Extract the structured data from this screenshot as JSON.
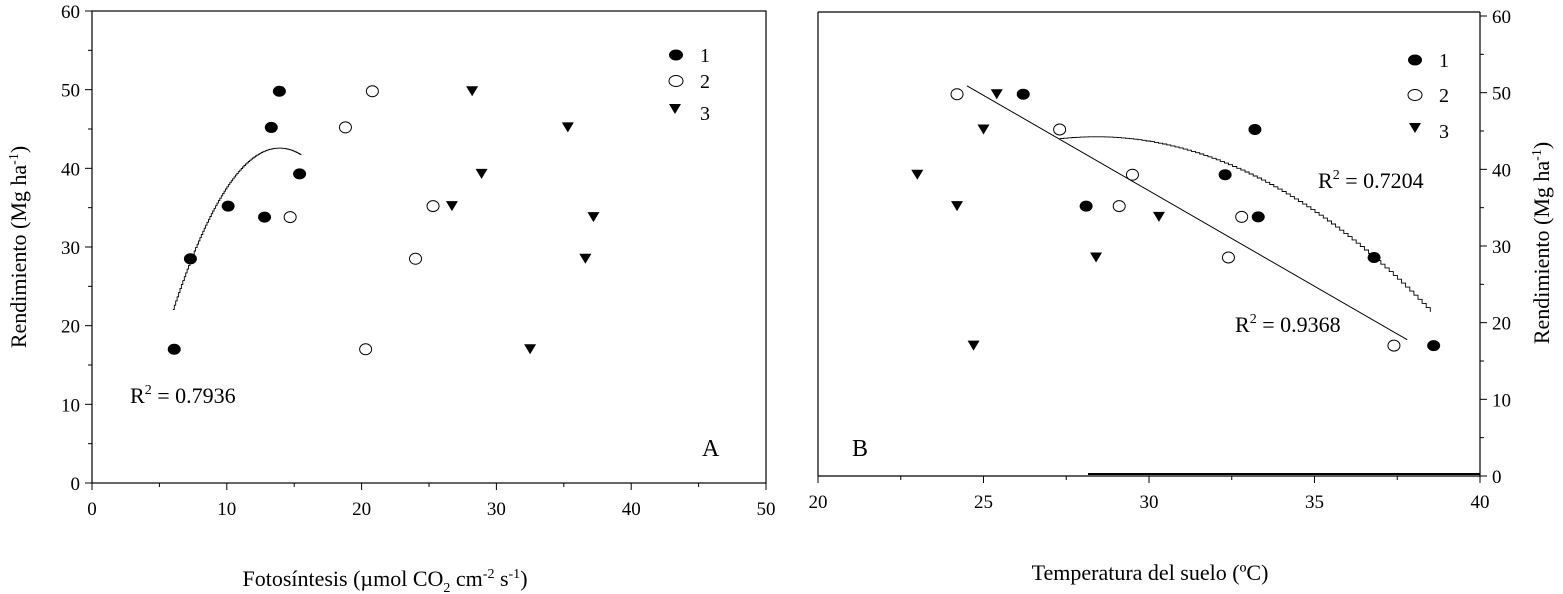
{
  "chart_data": [
    {
      "panel": "A",
      "type": "scatter",
      "xlabel": "Fotosíntesis (µmol CO",
      "xlabel_sub": "2",
      "xlabel_mid": " cm",
      "xlabel_sup1": "-2",
      "xlabel_mid2": " s",
      "xlabel_sup2": "-1",
      "xlabel_end": ")",
      "ylabel": "Rendimiento (Mg ha",
      "ylabel_sup": "-1",
      "ylabel_end": ")",
      "xlim": [
        0,
        50
      ],
      "ylim": [
        0,
        60
      ],
      "xticks": [
        "0",
        "10",
        "20",
        "30",
        "40",
        "50"
      ],
      "yticks": [
        "0",
        "10",
        "20",
        "30",
        "40",
        "50",
        "60"
      ],
      "legend": [
        "1",
        "2",
        "3"
      ],
      "legend_position": "top-right",
      "series": [
        {
          "name": "1",
          "marker": "filled-circle",
          "points": [
            [
              6.1,
              17
            ],
            [
              7.3,
              28.5
            ],
            [
              10.1,
              35.2
            ],
            [
              12.8,
              33.8
            ],
            [
              13.3,
              45.2
            ],
            [
              13.9,
              49.8
            ],
            [
              15.4,
              39.3
            ]
          ]
        },
        {
          "name": "2",
          "marker": "open-circle",
          "points": [
            [
              14.7,
              33.8
            ],
            [
              18.8,
              45.2
            ],
            [
              20.3,
              17
            ],
            [
              20.8,
              49.8
            ],
            [
              24,
              28.5
            ],
            [
              25.3,
              35.2
            ]
          ]
        },
        {
          "name": "3",
          "marker": "filled-triangle-down",
          "points": [
            [
              26.7,
              35.2
            ],
            [
              28.2,
              49.8
            ],
            [
              28.9,
              39.3
            ],
            [
              32.5,
              17
            ],
            [
              35.3,
              45.2
            ],
            [
              36.6,
              28.5
            ],
            [
              37.2,
              33.8
            ]
          ]
        }
      ],
      "fit": {
        "type": "quadratic",
        "x_from": 6,
        "x_to": 15.5,
        "coeffs": {
          "a": -0.3318,
          "b": 9.2,
          "c": -21.2
        }
      },
      "annotations": [
        {
          "text": "R",
          "sup": "2",
          "rest": " = 0.7936",
          "at_x": 2.8,
          "at_y": 10.8
        },
        {
          "text": "A",
          "at_x": 45.3,
          "at_y": 3.5
        }
      ]
    },
    {
      "panel": "B",
      "type": "scatter",
      "xlabel": "Temperatura del suelo (ºC)",
      "ylabel": "Rendimiento (Mg ha",
      "ylabel_sup": "-1",
      "ylabel_end": ")",
      "xlim": [
        20,
        40
      ],
      "ylim": [
        0,
        60
      ],
      "xticks": [
        "20",
        "25",
        "30",
        "35",
        "40"
      ],
      "yticks": [
        "0",
        "10",
        "20",
        "30",
        "40",
        "50",
        "60"
      ],
      "legend": [
        "1",
        "2",
        "3"
      ],
      "legend_position": "top-right",
      "series": [
        {
          "name": "1",
          "marker": "filled-circle",
          "points": [
            [
              26.2,
              49.8
            ],
            [
              28.1,
              35.2
            ],
            [
              32.3,
              39.3
            ],
            [
              33.2,
              45.2
            ],
            [
              33.3,
              33.8
            ],
            [
              36.8,
              28.5
            ],
            [
              38.6,
              17
            ]
          ]
        },
        {
          "name": "2",
          "marker": "open-circle",
          "points": [
            [
              24.2,
              49.8
            ],
            [
              27.3,
              45.2
            ],
            [
              29.1,
              35.2
            ],
            [
              29.5,
              39.3
            ],
            [
              32.4,
              28.5
            ],
            [
              32.8,
              33.8
            ],
            [
              37.4,
              17
            ]
          ]
        },
        {
          "name": "3",
          "marker": "filled-triangle-down",
          "points": [
            [
              23,
              39.3
            ],
            [
              24.2,
              35.2
            ],
            [
              24.7,
              17
            ],
            [
              25,
              45.2
            ],
            [
              25.4,
              49.8
            ],
            [
              28.4,
              28.5
            ],
            [
              30.3,
              33.8
            ]
          ]
        }
      ],
      "fits": [
        {
          "type": "linear",
          "x_from": 24.5,
          "x_to": 37.8,
          "coeffs": {
            "m": -2.49,
            "b": 111.9
          }
        },
        {
          "type": "quadratic",
          "x_from": 27.3,
          "x_to": 38.5,
          "coeffs": {
            "a": -0.2214,
            "b": 12.55,
            "c": -133.6
          }
        }
      ],
      "annotations": [
        {
          "text": "R",
          "sup": "2",
          "rest": " = 0.7204",
          "at_x": 35,
          "at_y": 37.5
        },
        {
          "text": "R",
          "sup": "2",
          "rest": " = 0.9368",
          "at_x": 32.2,
          "at_y": 19.5
        },
        {
          "text": "B",
          "at_x": 21,
          "at_y": 3.5
        }
      ]
    }
  ]
}
